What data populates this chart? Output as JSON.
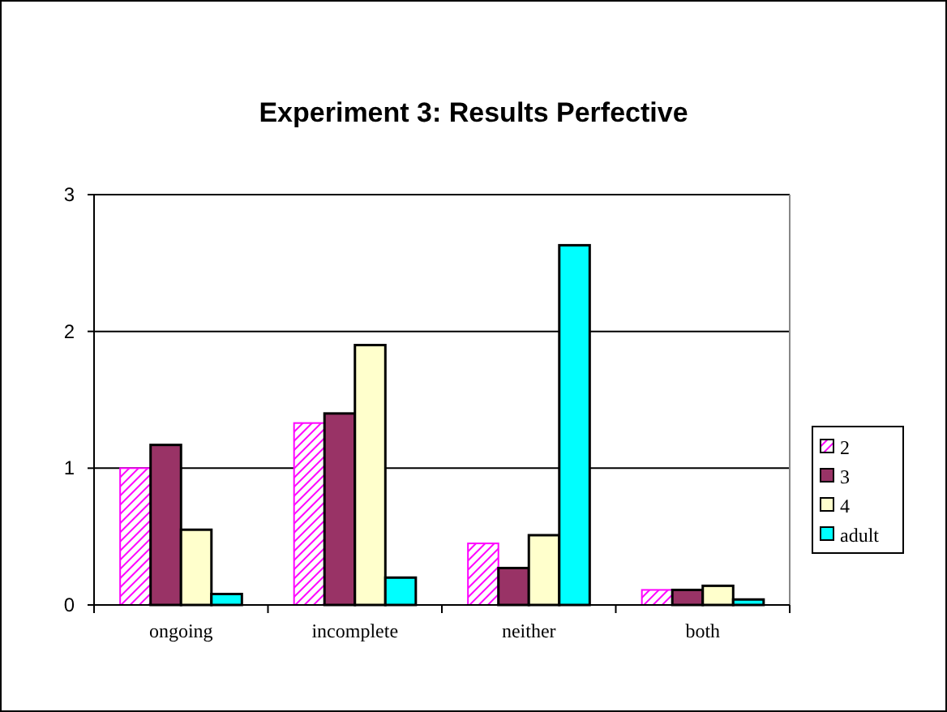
{
  "chart_data": {
    "type": "bar",
    "title": "Experiment 3: Results Perfective",
    "categories": [
      "ongoing",
      "incomplete",
      "neither",
      "both"
    ],
    "series": [
      {
        "name": "2",
        "color": "#ff00ff",
        "values": [
          1.0,
          1.33,
          0.45,
          0.11
        ]
      },
      {
        "name": "3",
        "color": "#993366",
        "values": [
          1.17,
          1.4,
          0.27,
          0.11
        ]
      },
      {
        "name": "4",
        "color": "#ffffcc",
        "values": [
          0.55,
          1.9,
          0.51,
          0.14
        ]
      },
      {
        "name": "adult",
        "color": "#00ffff",
        "values": [
          0.08,
          0.2,
          2.63,
          0.04
        ]
      }
    ],
    "ylim": [
      0,
      3
    ],
    "yticks": [
      0,
      1,
      2,
      3
    ],
    "grid": "y",
    "legend": "right"
  }
}
